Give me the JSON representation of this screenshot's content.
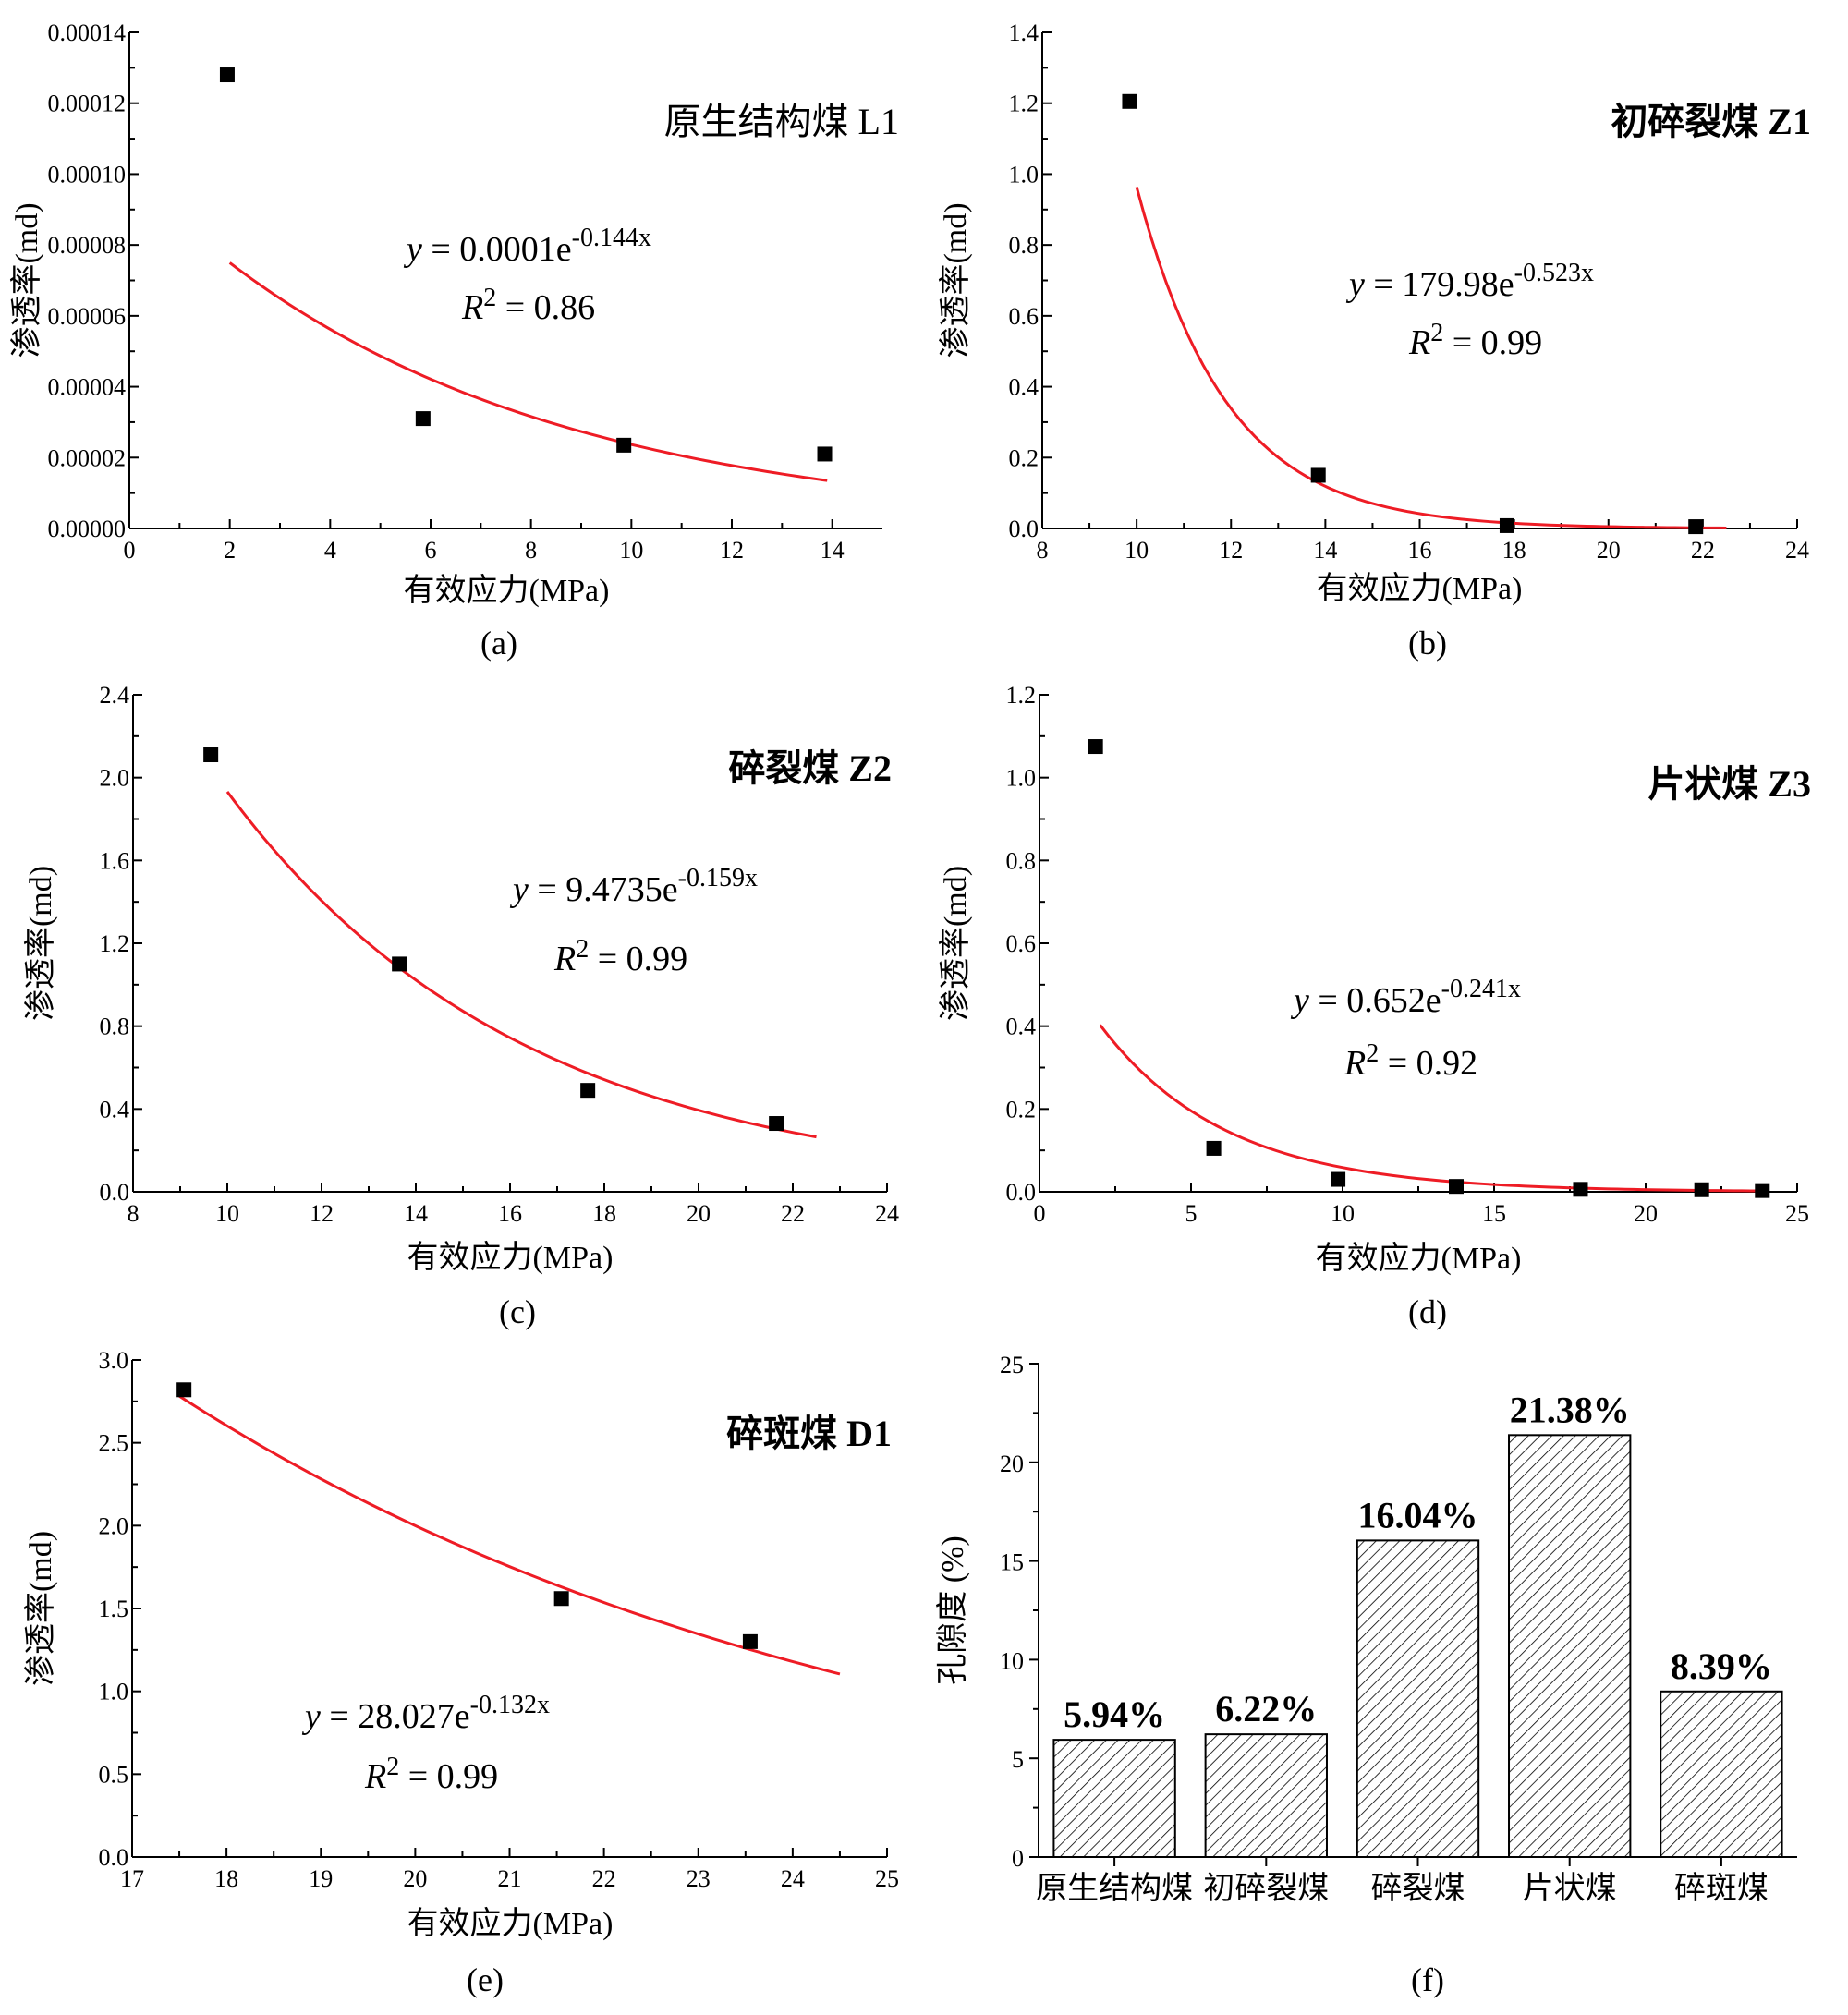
{
  "chart_data": [
    {
      "id": "a",
      "type": "scatter",
      "title": "原生结构煤 L1",
      "xlabel": "有效应力(MPa)",
      "ylabel": "渗透率(md)",
      "panel_label": "(a)",
      "xlim": [
        0,
        15
      ],
      "ylim": [
        0,
        0.00014
      ],
      "xticks": [
        0,
        2,
        4,
        6,
        8,
        10,
        12,
        14
      ],
      "yticks": [
        0,
        2e-05,
        4e-05,
        6e-05,
        8e-05,
        0.0001,
        0.00012,
        0.00014
      ],
      "ytick_labels": [
        "0.00000",
        "0.00002",
        "0.00004",
        "0.00006",
        "0.00008",
        "0.00010",
        "0.00012",
        "0.00014"
      ],
      "points": {
        "x": [
          1.95,
          5.85,
          9.85,
          13.85
        ],
        "y": [
          0.000128,
          3.1e-05,
          2.35e-05,
          2.1e-05
        ]
      },
      "fit": {
        "a": 0.0001,
        "b": -0.144,
        "x_range": [
          2.0,
          13.9
        ],
        "color": "#ee1c25"
      },
      "equation": {
        "lhs": "y",
        "rhs": " = 0.0001e",
        "exponent": "-0.144x"
      },
      "r2": {
        "label": "R",
        "sup": "2",
        "value": " = 0.86"
      }
    },
    {
      "id": "b",
      "type": "scatter",
      "title": "初碎裂煤 Z1",
      "xlabel": "有效应力(MPa)",
      "ylabel": "渗透率(md)",
      "panel_label": "(b)",
      "xlim": [
        8,
        24
      ],
      "ylim": [
        0,
        1.4
      ],
      "xticks": [
        8,
        10,
        12,
        14,
        16,
        18,
        20,
        22,
        24
      ],
      "yticks": [
        0,
        0.2,
        0.4,
        0.6,
        0.8,
        1.0,
        1.2,
        1.4
      ],
      "ytick_labels": [
        "0.0",
        "0.2",
        "0.4",
        "0.6",
        "0.8",
        "1.0",
        "1.2",
        "1.4"
      ],
      "points": {
        "x": [
          9.85,
          13.85,
          17.85,
          21.85
        ],
        "y": [
          1.205,
          0.15,
          0.008,
          0.005
        ]
      },
      "fit": {
        "a": 179.98,
        "b": -0.523,
        "x_range": [
          10.0,
          22.5
        ],
        "color": "#ee1c25"
      },
      "equation": {
        "lhs": "y",
        "rhs": " = 179.98e",
        "exponent": "-0.523x"
      },
      "r2": {
        "label": "R",
        "sup": "2",
        "value": " = 0.99"
      }
    },
    {
      "id": "c",
      "type": "scatter",
      "title": "碎裂煤 Z2",
      "xlabel": "有效应力(MPa)",
      "ylabel": "渗透率(md)",
      "panel_label": "(c)",
      "xlim": [
        8,
        24
      ],
      "ylim": [
        0,
        2.4
      ],
      "xticks": [
        8,
        10,
        12,
        14,
        16,
        18,
        20,
        22,
        24
      ],
      "yticks": [
        0,
        0.4,
        0.8,
        1.2,
        1.6,
        2.0,
        2.4
      ],
      "ytick_labels": [
        "0.0",
        "0.4",
        "0.8",
        "1.2",
        "1.6",
        "2.0",
        "2.4"
      ],
      "points": {
        "x": [
          9.65,
          13.65,
          17.65,
          21.65
        ],
        "y": [
          2.11,
          1.1,
          0.49,
          0.33
        ]
      },
      "fit": {
        "a": 9.4735,
        "b": -0.159,
        "x_range": [
          10.0,
          22.5
        ],
        "color": "#ee1c25"
      },
      "equation": {
        "lhs": "y",
        "rhs": " = 9.4735e",
        "exponent": "-0.159x"
      },
      "r2": {
        "label": "R",
        "sup": "2",
        "value": " = 0.99"
      }
    },
    {
      "id": "d",
      "type": "scatter",
      "title": "片状煤 Z3",
      "xlabel": "有效应力(MPa)",
      "ylabel": "渗透率(md)",
      "panel_label": "(d)",
      "xlim": [
        0,
        25
      ],
      "ylim": [
        0,
        1.2
      ],
      "xticks": [
        0,
        5,
        10,
        15,
        20,
        25
      ],
      "yticks": [
        0,
        0.2,
        0.4,
        0.6,
        0.8,
        1.0,
        1.2
      ],
      "ytick_labels": [
        "0.0",
        "0.2",
        "0.4",
        "0.6",
        "0.8",
        "1.0",
        "1.2"
      ],
      "points": {
        "x": [
          1.85,
          5.75,
          9.85,
          13.75,
          17.85,
          21.85,
          23.85
        ],
        "y": [
          1.075,
          0.105,
          0.03,
          0.013,
          0.006,
          0.005,
          0.003
        ]
      },
      "fit": {
        "a": 0.652,
        "b": -0.241,
        "x_range": [
          2.0,
          24.0
        ],
        "color": "#ee1c25"
      },
      "equation": {
        "lhs": "y",
        "rhs": " = 0.652e",
        "exponent": "-0.241x"
      },
      "r2": {
        "label": "R",
        "sup": "2",
        "value": " = 0.92"
      }
    },
    {
      "id": "e",
      "type": "scatter",
      "title": "碎斑煤 D1",
      "xlabel": "有效应力(MPa)",
      "ylabel": "渗透率(md)",
      "panel_label": "(e)",
      "xlim": [
        17,
        25
      ],
      "ylim": [
        0,
        3.0
      ],
      "xticks": [
        17,
        18,
        19,
        20,
        21,
        22,
        23,
        24,
        25
      ],
      "yticks": [
        0,
        0.5,
        1.0,
        1.5,
        2.0,
        2.5,
        3.0
      ],
      "ytick_labels": [
        "0.0",
        "0.5",
        "1.0",
        "1.5",
        "2.0",
        "2.5",
        "3.0"
      ],
      "points": {
        "x": [
          17.55,
          21.55,
          23.55
        ],
        "y": [
          2.82,
          1.56,
          1.3
        ]
      },
      "fit": {
        "a": 28.027,
        "b": -0.132,
        "x_range": [
          17.5,
          24.5
        ],
        "color": "#ee1c25"
      },
      "equation": {
        "lhs": "y",
        "rhs": " = 28.027e",
        "exponent": "-0.132x"
      },
      "r2": {
        "label": "R",
        "sup": "2",
        "value": " = 0.99"
      }
    },
    {
      "id": "f",
      "type": "bar",
      "title": "",
      "xlabel": "",
      "ylabel": "孔隙度 (%)",
      "panel_label": "(f)",
      "ylim": [
        0,
        25
      ],
      "yticks": [
        0,
        5,
        10,
        15,
        20,
        25
      ],
      "ytick_labels": [
        "0",
        "5",
        "10",
        "15",
        "20",
        "25"
      ],
      "categories": [
        "原生结构煤",
        "初碎裂煤",
        "碎裂煤",
        "片状煤",
        "碎斑煤"
      ],
      "values": [
        5.94,
        6.22,
        16.04,
        21.38,
        8.39
      ],
      "value_labels": [
        "5.94%",
        "6.22%",
        "16.04%",
        "21.38%",
        "8.39%"
      ],
      "bar_fill": "hatched"
    }
  ]
}
